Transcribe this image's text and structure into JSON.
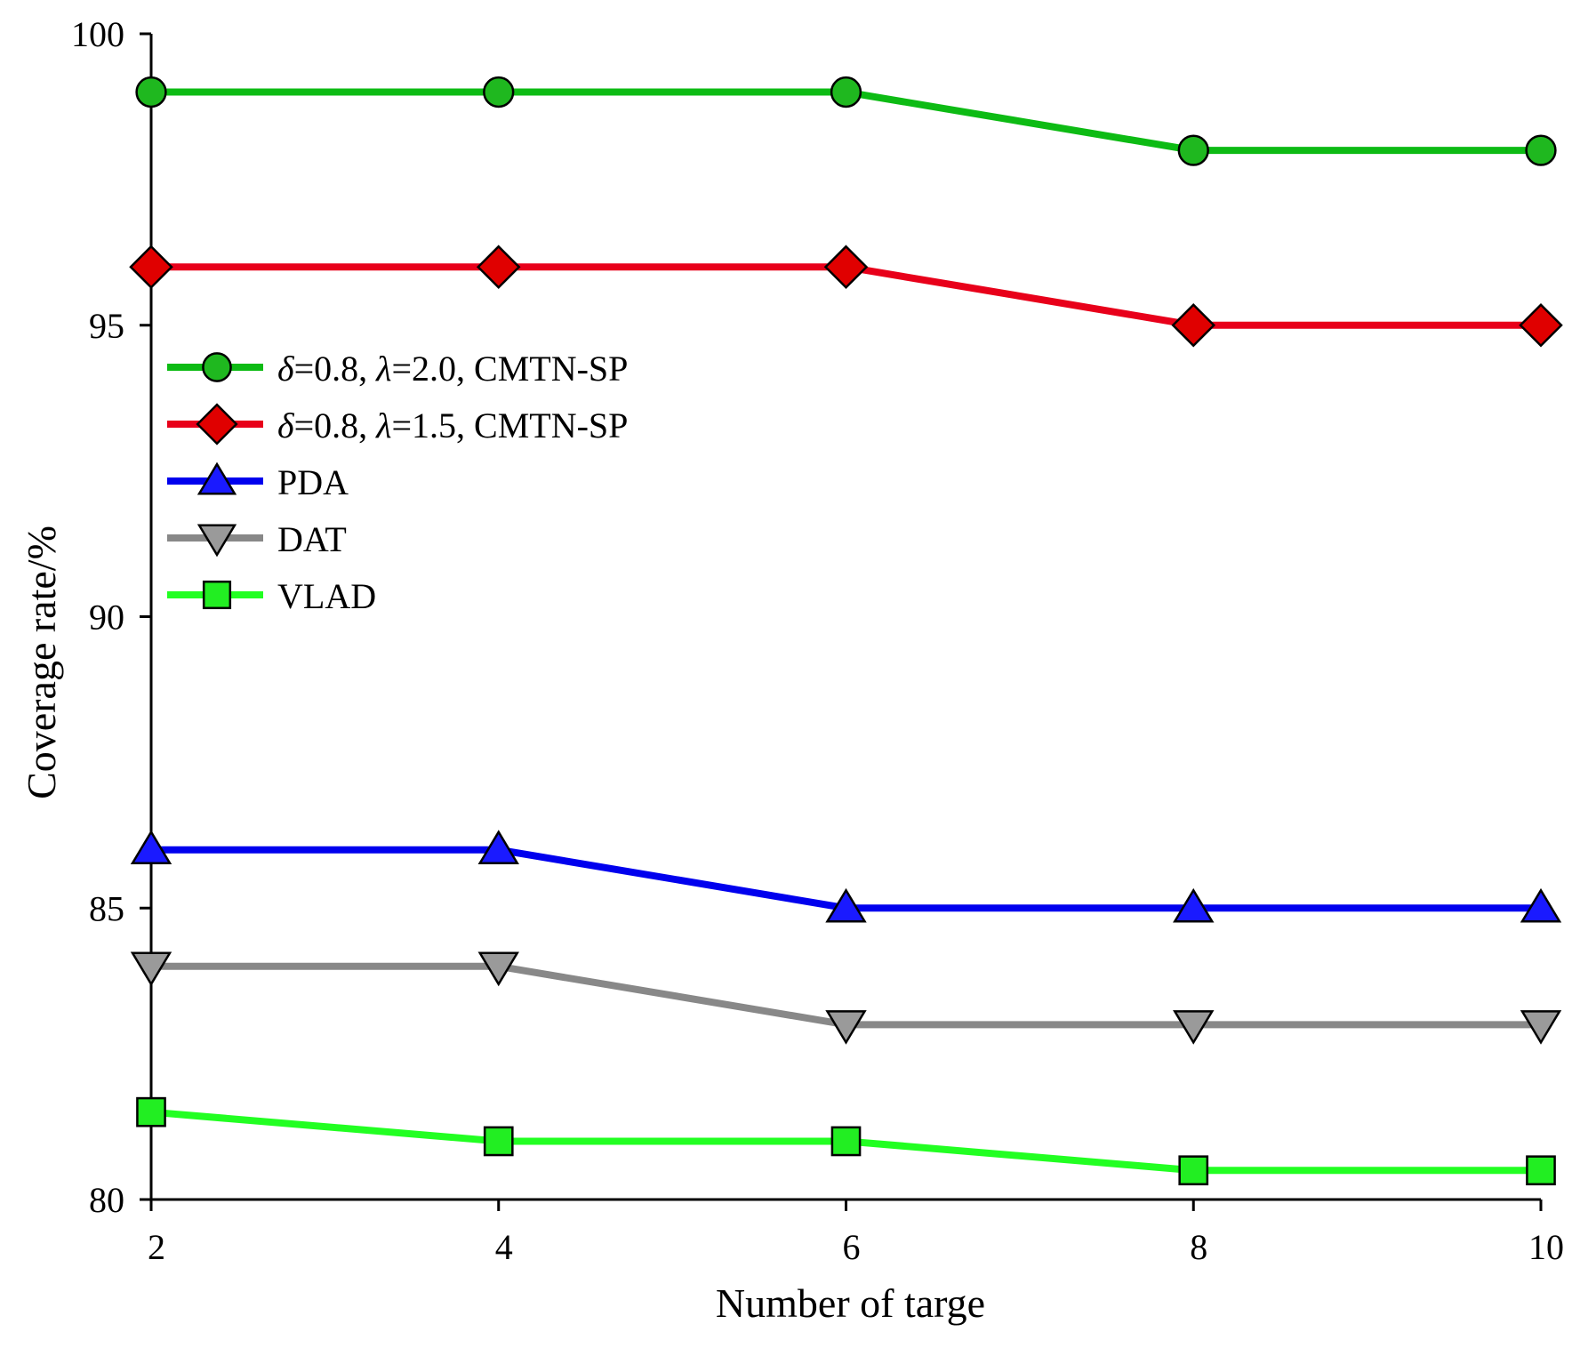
{
  "chart_data": {
    "type": "line",
    "title": "",
    "xlabel": "Number of targe",
    "ylabel": "Coverage rate/%",
    "x": [
      2,
      4,
      6,
      8,
      10
    ],
    "xticks": [
      "2",
      "4",
      "6",
      "8",
      "10"
    ],
    "yticks": [
      "80",
      "85",
      "90",
      "95",
      "100"
    ],
    "ylim": [
      80,
      100
    ],
    "xlim": [
      2,
      10
    ],
    "grid": false,
    "legend_position": "center-left",
    "series": [
      {
        "name_parts": [
          "δ",
          "=0.8, ",
          "λ",
          "=2.0, CMTN-SP"
        ],
        "values": [
          99,
          99,
          99,
          98,
          98
        ],
        "color": "#0dbb14",
        "marker_fill": "#1fb81f",
        "marker": "circle"
      },
      {
        "name_parts": [
          "δ",
          "=0.8, ",
          "λ",
          "=1.5, CMTN-SP"
        ],
        "values": [
          96,
          96,
          96,
          95,
          95
        ],
        "color": "#e8001a",
        "marker_fill": "#e00000",
        "marker": "diamond"
      },
      {
        "name": "PDA",
        "values": [
          86,
          86,
          85,
          85,
          85
        ],
        "color": "#0000ee",
        "marker_fill": "#1a1aff",
        "marker": "triangle-up"
      },
      {
        "name": "DAT",
        "values": [
          84,
          84,
          83,
          83,
          83
        ],
        "color": "#888888",
        "marker_fill": "#9a9a9a",
        "marker": "triangle-down"
      },
      {
        "name": "VLAD",
        "values": [
          81.5,
          81,
          81,
          80.5,
          80.5
        ],
        "color": "#22ff22",
        "marker_fill": "#22ee22",
        "marker": "square"
      }
    ]
  }
}
